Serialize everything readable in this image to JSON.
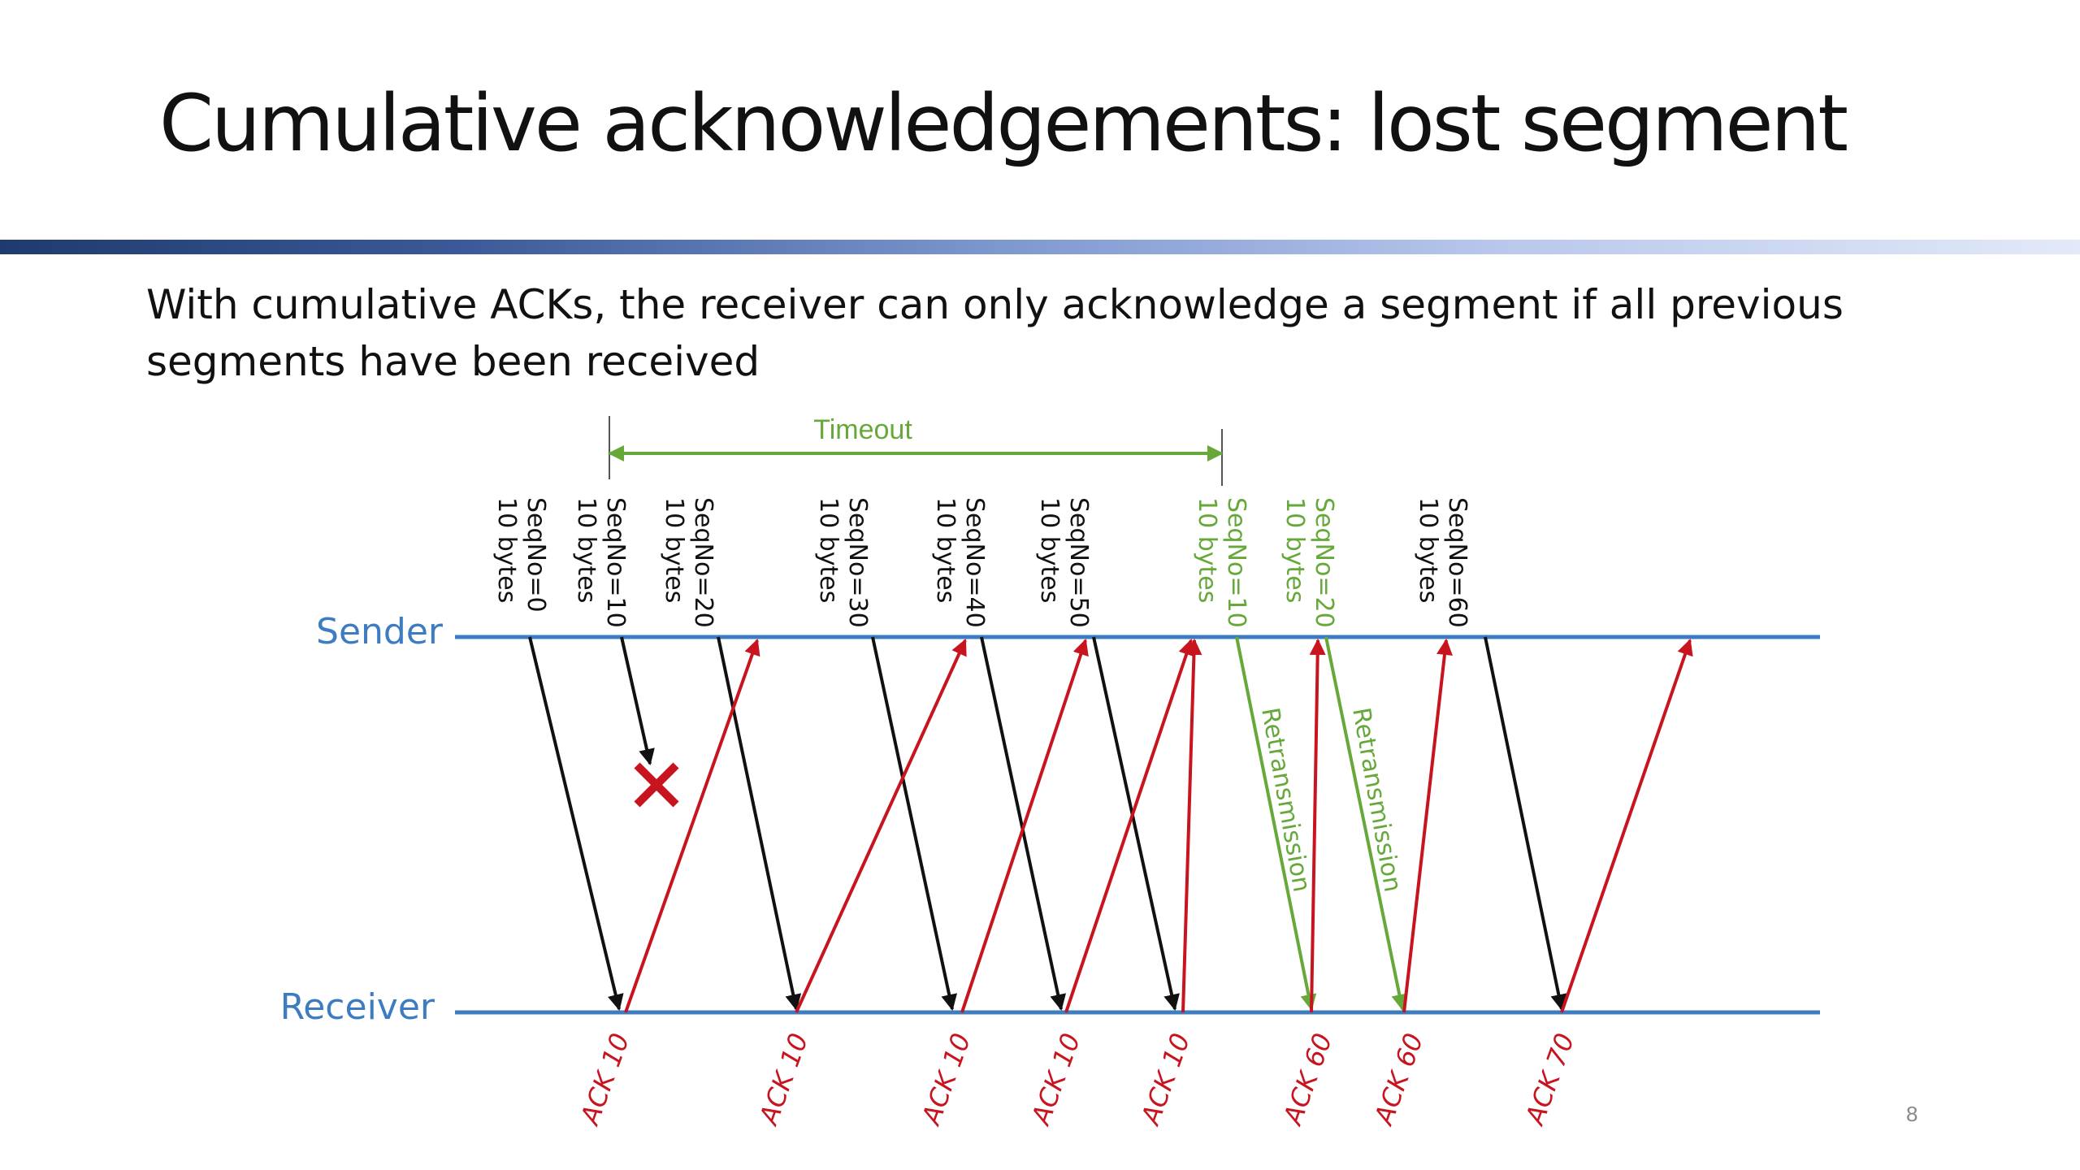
{
  "slide": {
    "title": "Cumulative acknowledgements: lost segment",
    "body": "With cumulative ACKs, the receiver can only acknowledge a segment if all previous segments have been received",
    "page_number": "8"
  },
  "colors": {
    "timeline": "#3d7cc0",
    "data": "#111111",
    "ack": "#c8141e",
    "retransmit": "#66a83a",
    "loss_marker": "#c8141e"
  },
  "diagram": {
    "sender_label": "Sender",
    "receiver_label": "Receiver",
    "timeout_label": "Timeout",
    "retransmission_label": "Retransmission",
    "segments": [
      {
        "seq": "SeqNo=0",
        "size": "10 bytes",
        "retransmit": false,
        "lost": false
      },
      {
        "seq": "SeqNo=10",
        "size": "10 bytes",
        "retransmit": false,
        "lost": true
      },
      {
        "seq": "SeqNo=20",
        "size": "10 bytes",
        "retransmit": false,
        "lost": false
      },
      {
        "seq": "SeqNo=30",
        "size": "10 bytes",
        "retransmit": false,
        "lost": false
      },
      {
        "seq": "SeqNo=40",
        "size": "10 bytes",
        "retransmit": false,
        "lost": false
      },
      {
        "seq": "SeqNo=50",
        "size": "10 bytes",
        "retransmit": false,
        "lost": false
      },
      {
        "seq": "SeqNo=10",
        "size": "10 bytes",
        "retransmit": true,
        "lost": false
      },
      {
        "seq": "SeqNo=20",
        "size": "10 bytes",
        "retransmit": true,
        "lost": false
      },
      {
        "seq": "SeqNo=60",
        "size": "10 bytes",
        "retransmit": false,
        "lost": false
      }
    ],
    "acks": [
      "ACK 10",
      "ACK 10",
      "ACK 10",
      "ACK 10",
      "ACK 10",
      "ACK 60",
      "ACK 60",
      "ACK 70"
    ]
  }
}
